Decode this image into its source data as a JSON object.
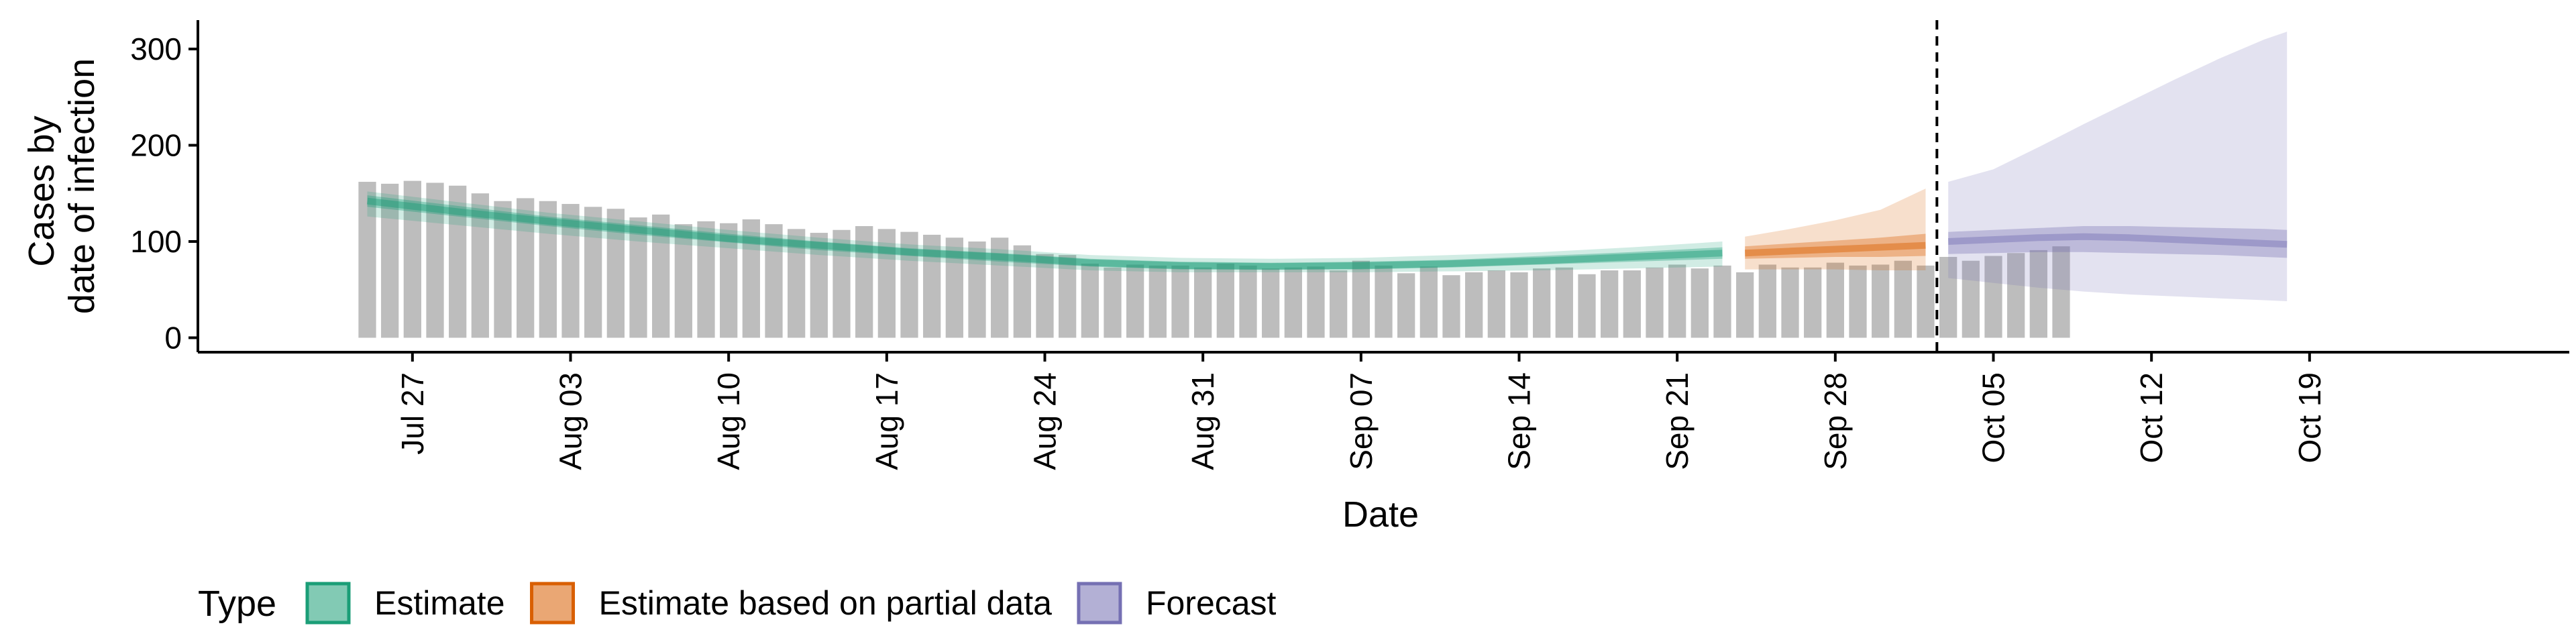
{
  "chart_data": {
    "type": "bar",
    "xlabel": "Date",
    "ylabel_lines": [
      "Cases by",
      "date of infection"
    ],
    "yticks": [
      0,
      100,
      200,
      300
    ],
    "ylim": [
      -15,
      330
    ],
    "xlim_days": [
      -9.5,
      95.5
    ],
    "x_reference_date": "Jul 27",
    "x_ticks": [
      {
        "label": "Jul 27",
        "day": 0
      },
      {
        "label": "Aug 03",
        "day": 7
      },
      {
        "label": "Aug 10",
        "day": 14
      },
      {
        "label": "Aug 17",
        "day": 21
      },
      {
        "label": "Aug 24",
        "day": 28
      },
      {
        "label": "Aug 31",
        "day": 35
      },
      {
        "label": "Sep 07",
        "day": 42
      },
      {
        "label": "Sep 14",
        "day": 49
      },
      {
        "label": "Sep 21",
        "day": 56
      },
      {
        "label": "Sep 28",
        "day": 63
      },
      {
        "label": "Oct 05",
        "day": 70
      },
      {
        "label": "Oct 12",
        "day": 77
      },
      {
        "label": "Oct 19",
        "day": 84
      }
    ],
    "vline_day": 67.5,
    "bars": {
      "start_day": -2,
      "values": [
        162,
        160,
        163,
        161,
        158,
        150,
        142,
        145,
        142,
        139,
        136,
        134,
        125,
        128,
        118,
        121,
        119,
        123,
        118,
        113,
        109,
        112,
        116,
        113,
        110,
        107,
        104,
        100,
        104,
        96,
        87,
        86,
        77,
        73,
        76,
        75,
        75,
        73,
        77,
        75,
        72,
        73,
        74,
        70,
        80,
        75,
        67,
        74,
        65,
        68,
        70,
        68,
        72,
        73,
        66,
        70,
        70,
        73,
        76,
        72,
        75,
        68,
        76,
        73,
        73,
        78,
        75,
        76,
        80,
        75,
        84,
        80,
        85,
        88,
        91,
        95
      ]
    },
    "series": [
      {
        "name": "Estimate",
        "color": "#1b9e77",
        "x": [
          -2,
          2,
          6,
          10,
          14,
          18,
          22,
          26,
          30,
          34,
          38,
          42,
          46,
          50,
          54,
          58
        ],
        "median": [
          142,
          131,
          121,
          112,
          103,
          96,
          89,
          84,
          78,
          75,
          74,
          75,
          77,
          80,
          84,
          88
        ],
        "inner": {
          "lower": [
            136,
            126,
            116,
            107,
            99,
            91,
            85,
            79,
            74,
            71,
            71,
            71,
            73,
            76,
            79,
            82
          ],
          "upper": [
            148,
            137,
            126,
            117,
            108,
            100,
            93,
            88,
            82,
            79,
            78,
            79,
            81,
            85,
            89,
            94
          ]
        },
        "outer": {
          "lower": [
            126,
            117,
            108,
            100,
            93,
            86,
            80,
            75,
            70,
            68,
            68,
            68,
            69,
            70,
            72,
            74
          ],
          "upper": [
            152,
            141,
            130,
            121,
            112,
            104,
            97,
            92,
            86,
            83,
            82,
            83,
            86,
            89,
            94,
            100
          ]
        }
      },
      {
        "name": "Estimate based on partial data",
        "color": "#d95f02",
        "x": [
          59,
          61,
          63,
          65,
          67
        ],
        "median": [
          88,
          90,
          92,
          94,
          96
        ],
        "inner": {
          "lower": [
            82,
            83,
            84,
            84,
            85
          ],
          "upper": [
            95,
            98,
            101,
            104,
            108
          ]
        },
        "outer": {
          "lower": [
            71,
            71,
            71,
            70,
            70
          ],
          "upper": [
            105,
            113,
            122,
            133,
            155
          ]
        }
      },
      {
        "name": "Forecast",
        "color": "#7570b3",
        "x": [
          68,
          70,
          72,
          74,
          76,
          78,
          80,
          82,
          83
        ],
        "median": [
          100,
          102,
          104,
          105,
          104,
          102,
          100,
          98,
          97
        ],
        "inner": {
          "lower": [
            87,
            88,
            89,
            89,
            88,
            87,
            86,
            84,
            83
          ],
          "upper": [
            110,
            112,
            114,
            116,
            116,
            115,
            114,
            113,
            112
          ]
        },
        "outer": {
          "lower": [
            62,
            57,
            52,
            48,
            45,
            43,
            41,
            39,
            38
          ],
          "upper": [
            162,
            175,
            198,
            222,
            245,
            268,
            290,
            310,
            318
          ]
        }
      }
    ],
    "legend": {
      "title": "Type",
      "position": "bottom-left",
      "items": [
        {
          "label": "Estimate",
          "color": "#1b9e77"
        },
        {
          "label": "Estimate based on partial data",
          "color": "#d95f02"
        },
        {
          "label": "Forecast",
          "color": "#7570b3"
        }
      ]
    },
    "grid": false
  }
}
